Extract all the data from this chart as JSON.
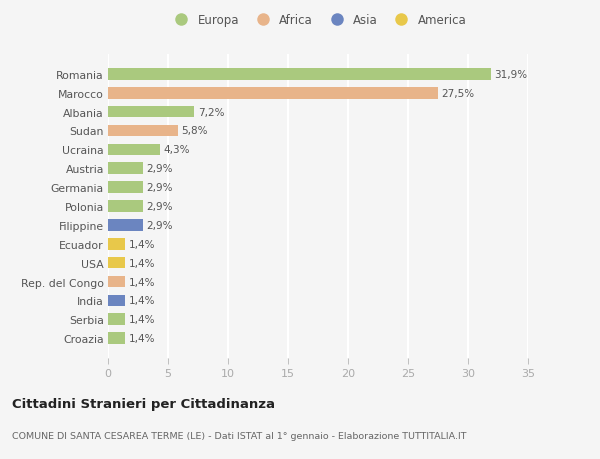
{
  "categories": [
    "Romania",
    "Marocco",
    "Albania",
    "Sudan",
    "Ucraina",
    "Austria",
    "Germania",
    "Polonia",
    "Filippine",
    "Ecuador",
    "USA",
    "Rep. del Congo",
    "India",
    "Serbia",
    "Croazia"
  ],
  "values": [
    31.9,
    27.5,
    7.2,
    5.8,
    4.3,
    2.9,
    2.9,
    2.9,
    2.9,
    1.4,
    1.4,
    1.4,
    1.4,
    1.4,
    1.4
  ],
  "labels": [
    "31,9%",
    "27,5%",
    "7,2%",
    "5,8%",
    "4,3%",
    "2,9%",
    "2,9%",
    "2,9%",
    "2,9%",
    "1,4%",
    "1,4%",
    "1,4%",
    "1,4%",
    "1,4%",
    "1,4%"
  ],
  "continents": [
    "Europa",
    "Africa",
    "Europa",
    "Africa",
    "Europa",
    "Europa",
    "Europa",
    "Europa",
    "Asia",
    "America",
    "America",
    "Africa",
    "Asia",
    "Europa",
    "Europa"
  ],
  "colors": {
    "Europa": "#aac97e",
    "Africa": "#e8b48a",
    "Asia": "#6b85c0",
    "America": "#e8c84a"
  },
  "legend_order": [
    "Europa",
    "Africa",
    "Asia",
    "America"
  ],
  "xlim": [
    0,
    35
  ],
  "xticks": [
    0,
    5,
    10,
    15,
    20,
    25,
    30,
    35
  ],
  "title": "Cittadini Stranieri per Cittadinanza",
  "subtitle": "COMUNE DI SANTA CESAREA TERME (LE) - Dati ISTAT al 1° gennaio - Elaborazione TUTTITALIA.IT",
  "bg_color": "#f5f5f5",
  "grid_color": "#ffffff",
  "bar_height": 0.62
}
